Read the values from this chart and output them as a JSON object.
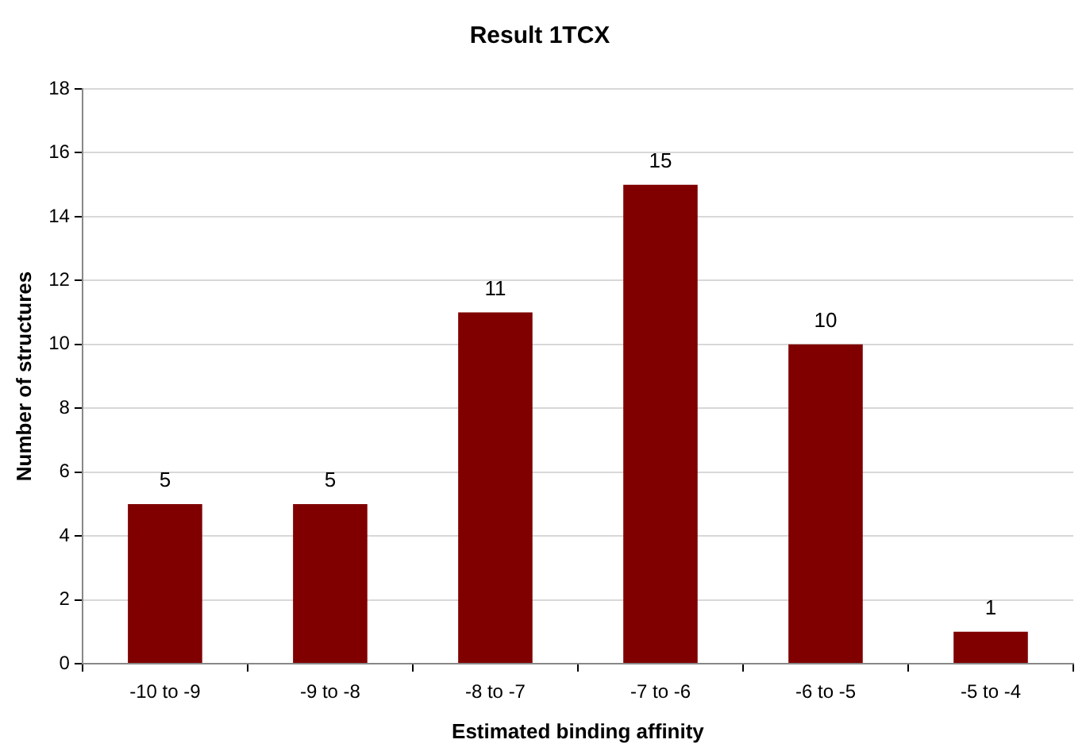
{
  "chart_data": {
    "type": "bar",
    "title": "Result 1TCX",
    "xlabel": "Estimated binding affinity",
    "ylabel": "Number of structures",
    "categories": [
      "-10 to -9",
      "-9 to -8",
      "-8 to -7",
      "-7 to -6",
      "-6 to -5",
      "-5 to -4"
    ],
    "values": [
      5,
      5,
      11,
      15,
      10,
      1
    ],
    "color": "#800000",
    "ylim": [
      0,
      18
    ],
    "yticks": [
      0,
      2,
      4,
      6,
      8,
      10,
      12,
      14,
      16,
      18
    ],
    "grid": "y",
    "data_labels": true
  }
}
